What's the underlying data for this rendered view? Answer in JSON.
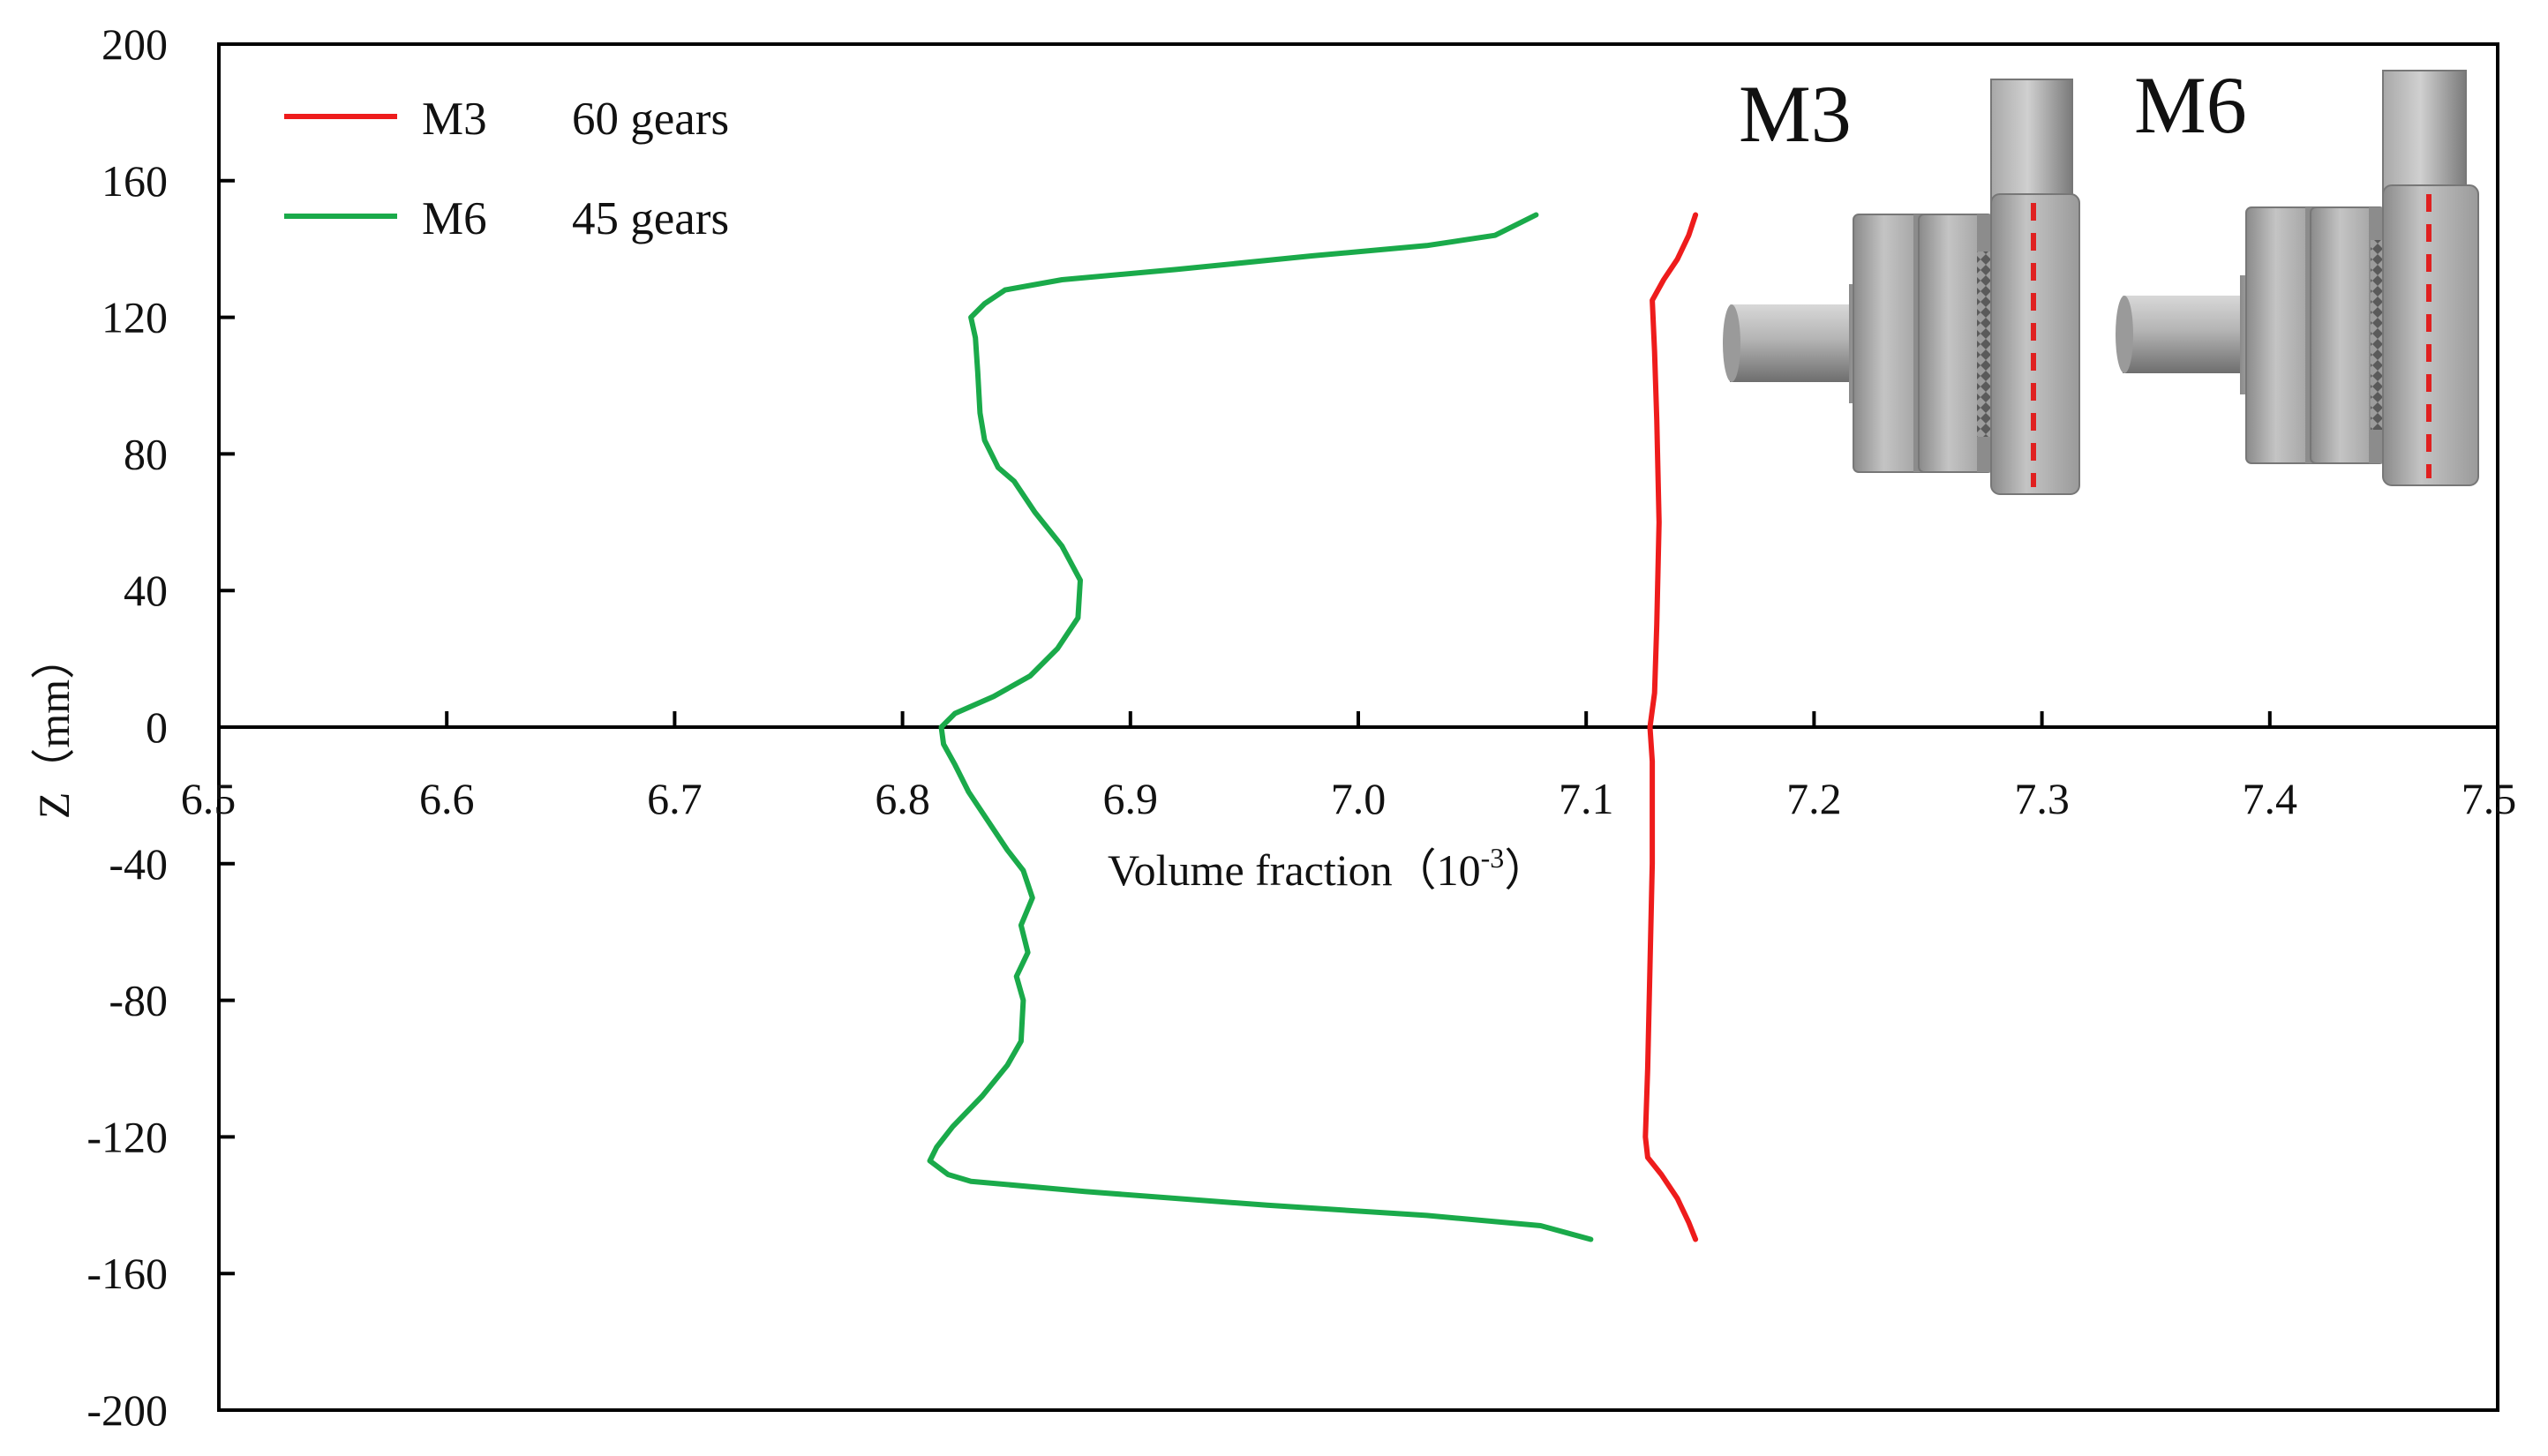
{
  "chart_data": {
    "type": "line",
    "xlabel": "Volume fraction（10",
    "xlabel_exp": "-3",
    "xlabel_close": "）",
    "ylabel": "Z（mm）",
    "xlim": [
      6.5,
      7.5
    ],
    "ylim": [
      -200,
      200
    ],
    "x_ticks": [
      "6.5",
      "6.6",
      "6.7",
      "6.8",
      "6.9",
      "7.0",
      "7.1",
      "7.2",
      "7.3",
      "7.4",
      "7.5"
    ],
    "y_ticks": [
      "200",
      "160",
      "120",
      "80",
      "40",
      "0",
      "-40",
      "-80",
      "-120",
      "-160",
      "-200"
    ],
    "grid": false,
    "legend_position": "top-left",
    "series": [
      {
        "name": "M3",
        "label": "60 gears",
        "color": "#ee1c1c",
        "points": [
          [
            7.148,
            -150
          ],
          [
            7.145,
            -145
          ],
          [
            7.14,
            -138
          ],
          [
            7.133,
            -131
          ],
          [
            7.127,
            -126
          ],
          [
            7.126,
            -120
          ],
          [
            7.127,
            -100
          ],
          [
            7.128,
            -70
          ],
          [
            7.129,
            -40
          ],
          [
            7.129,
            -10
          ],
          [
            7.128,
            0
          ],
          [
            7.13,
            10
          ],
          [
            7.131,
            30
          ],
          [
            7.132,
            60
          ],
          [
            7.131,
            90
          ],
          [
            7.13,
            110
          ],
          [
            7.129,
            125
          ],
          [
            7.134,
            131
          ],
          [
            7.14,
            137
          ],
          [
            7.145,
            144
          ],
          [
            7.148,
            150
          ]
        ]
      },
      {
        "name": "M6",
        "label": "45 gears",
        "color": "#1aaa4a",
        "points": [
          [
            7.102,
            -150
          ],
          [
            7.08,
            -146
          ],
          [
            7.03,
            -143
          ],
          [
            6.96,
            -140
          ],
          [
            6.88,
            -136
          ],
          [
            6.83,
            -133
          ],
          [
            6.82,
            -131
          ],
          [
            6.812,
            -127
          ],
          [
            6.815,
            -123
          ],
          [
            6.822,
            -117
          ],
          [
            6.835,
            -108
          ],
          [
            6.846,
            -99
          ],
          [
            6.852,
            -92
          ],
          [
            6.853,
            -80
          ],
          [
            6.85,
            -73
          ],
          [
            6.855,
            -66
          ],
          [
            6.852,
            -58
          ],
          [
            6.857,
            -50
          ],
          [
            6.853,
            -42
          ],
          [
            6.846,
            -36
          ],
          [
            6.839,
            -29
          ],
          [
            6.829,
            -19
          ],
          [
            6.823,
            -11
          ],
          [
            6.818,
            -5
          ],
          [
            6.817,
            0
          ],
          [
            6.823,
            4
          ],
          [
            6.84,
            9
          ],
          [
            6.856,
            15
          ],
          [
            6.868,
            23
          ],
          [
            6.877,
            32
          ],
          [
            6.878,
            43
          ],
          [
            6.87,
            53
          ],
          [
            6.858,
            63
          ],
          [
            6.849,
            72
          ],
          [
            6.842,
            76
          ],
          [
            6.836,
            84
          ],
          [
            6.834,
            92
          ],
          [
            6.833,
            104
          ],
          [
            6.832,
            114
          ],
          [
            6.83,
            120
          ],
          [
            6.836,
            124
          ],
          [
            6.845,
            128
          ],
          [
            6.87,
            131
          ],
          [
            6.92,
            134
          ],
          [
            6.98,
            138
          ],
          [
            7.03,
            141
          ],
          [
            7.06,
            144
          ],
          [
            7.078,
            150
          ]
        ]
      }
    ],
    "inset": {
      "labels": [
        "M3",
        "M6"
      ],
      "dashed_line_color": "#e02020"
    }
  }
}
